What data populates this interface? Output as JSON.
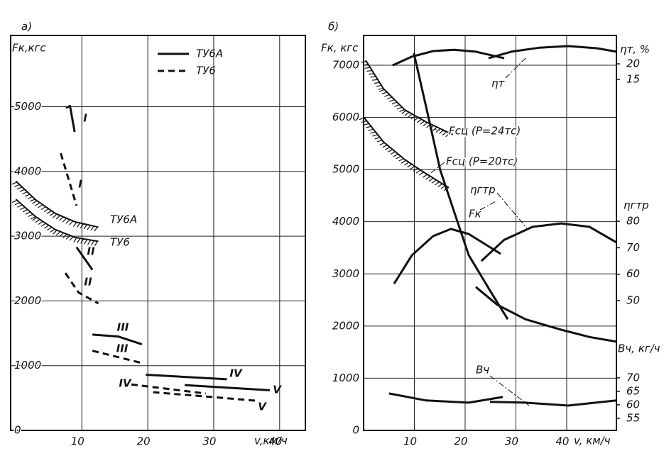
{
  "chart_data": [
    {
      "type": "line",
      "panel_label": "а)",
      "y_label": "Fк,кгс",
      "x_label": "v,км/ч",
      "xlim": [
        -0.8,
        43.9
      ],
      "ylim": [
        0,
        6100
      ],
      "xticks": [
        10,
        20,
        30,
        40
      ],
      "yticks": [
        0,
        1000,
        2000,
        3000,
        4000,
        5000
      ],
      "grid": true,
      "series": [
        {
          "name": "ТУ6А",
          "style": "solid",
          "color": "#111",
          "axis": "y",
          "segments": [
            {
              "label": "I",
              "x": [
                7.6,
                8.2,
                8.9
              ],
              "values": [
                4980,
                5010,
                4610
              ]
            },
            {
              "label": "II",
              "x": [
                9.2,
                11.6
              ],
              "values": [
                2830,
                2480
              ]
            },
            {
              "label": "III",
              "x": [
                11.6,
                15.5,
                19.1
              ],
              "values": [
                1480,
                1450,
                1330
              ]
            },
            {
              "label": "IV",
              "x": [
                19.7,
                32
              ],
              "values": [
                860,
                790
              ]
            },
            {
              "label": "V",
              "x": [
                25.6,
                38.5
              ],
              "values": [
                700,
                620
              ]
            }
          ]
        },
        {
          "name": "ТУ6",
          "style": "dashed",
          "color": "#111",
          "axis": "y",
          "segments": [
            {
              "label": "I",
              "x": [
                6.8,
                9.2
              ],
              "values": [
                4280,
                3470
              ]
            },
            {
              "label": "II",
              "x": [
                7.5,
                9.5,
                12.5
              ],
              "values": [
                2430,
                2130,
                1960
              ]
            },
            {
              "label": "III",
              "x": [
                11.6,
                19.1
              ],
              "values": [
                1230,
                1040
              ]
            },
            {
              "label": "IV",
              "x": [
                17.5,
                28.8
              ],
              "values": [
                710,
                570
              ]
            },
            {
              "label": "V",
              "x": [
                20.8,
                36.3
              ],
              "values": [
                590,
                460
              ]
            }
          ]
        }
      ],
      "limit_curves": [
        {
          "label": "ТУ6А",
          "x": [
            0,
            3,
            6,
            9,
            12.5
          ],
          "values": [
            3850,
            3560,
            3350,
            3220,
            3140
          ]
        },
        {
          "label": "ТУ6",
          "x": [
            0,
            3,
            6,
            9,
            12.5
          ],
          "values": [
            3570,
            3300,
            3100,
            2980,
            2920
          ]
        }
      ]
    },
    {
      "type": "line",
      "panel_label": "б)",
      "y_label": "Fк, кгс",
      "x_label": "v, км/ч",
      "xlim": [
        0,
        49.8
      ],
      "ylim": [
        0,
        7570
      ],
      "xticks": [
        10,
        20,
        30,
        40
      ],
      "yticks": [
        0,
        1000,
        2000,
        3000,
        4000,
        5000,
        6000,
        7000
      ],
      "grid": true,
      "y2_label": "ηгтр",
      "y2lim": [
        1.0,
        150.2
      ],
      "y2ticks": [
        80,
        70,
        60,
        50
      ],
      "y3_label": "ηт, %",
      "y3lim": [
        -97.5,
        29.1
      ],
      "y3ticks": [
        20,
        15
      ],
      "y4_label": "Вч, кг/ч",
      "y4lim": [
        50.5,
        197.1
      ],
      "y4ticks": [
        70,
        65,
        60,
        55
      ],
      "series": [
        {
          "name": "Fк",
          "style": "solid",
          "color": "#111",
          "axis": "y",
          "segments": [
            {
              "x": [
                9.9,
                12.3,
                15.1,
                17.9,
                20.7,
                24.9,
                28.4
              ],
              "values": [
                7230,
                6210,
                4990,
                4170,
                3360,
                2680,
                2130
              ]
            },
            {
              "x": [
                22.1,
                26.3,
                31.9,
                38.9,
                44.5,
                49.8
              ],
              "values": [
                2750,
                2410,
                2130,
                1930,
                1790,
                1700
              ]
            }
          ]
        },
        {
          "name": "ηт",
          "style": "solid",
          "color": "#111",
          "axis": "y3",
          "segments": [
            {
              "x": [
                5.7,
                9.5,
                13.7,
                17.9,
                22.1,
                27.7
              ],
              "values": [
                19.5,
                22.3,
                24.1,
                24.5,
                23.9,
                21.8
              ]
            },
            {
              "x": [
                24.6,
                29.1,
                34.7,
                40.3,
                45.9,
                49.8
              ],
              "values": [
                21.8,
                23.9,
                25.2,
                25.7,
                25.0,
                23.9
              ]
            }
          ]
        },
        {
          "name": "ηгтр",
          "style": "solid",
          "color": "#111",
          "axis": "y2",
          "segments": [
            {
              "x": [
                6.0,
                9.5,
                13.7,
                17.2,
                20.7,
                27.0
              ],
              "values": [
                56.4,
                67.1,
                74.4,
                77.1,
                75.2,
                67.7
              ]
            },
            {
              "x": [
                23.2,
                27.7,
                33.3,
                38.9,
                44.5,
                49.8
              ],
              "values": [
                65.0,
                73.0,
                77.9,
                79.2,
                77.9,
                72.0
              ]
            }
          ]
        },
        {
          "name": "Вч",
          "style": "solid",
          "color": "#111",
          "axis": "y4",
          "segments": [
            {
              "x": [
                5.0,
                12.3,
                20.7,
                27.4
              ],
              "values": [
                64.2,
                61.6,
                60.8,
                62.9
              ]
            },
            {
              "x": [
                24.9,
                31.9,
                40.3,
                49.8
              ],
              "values": [
                61.1,
                60.8,
                59.7,
                61.6
              ]
            }
          ]
        }
      ],
      "limit_curves": [
        {
          "label": "Fсц (P=24тс)",
          "x": [
            0.4,
            3.9,
            8.1,
            12.3,
            17.6
          ],
          "values": [
            7095,
            6552,
            6144,
            5913,
            5668
          ]
        },
        {
          "label": "Fсц (P=20тс)",
          "x": [
            0,
            3.9,
            8.1,
            12.3,
            16.8
          ],
          "values": [
            6008,
            5532,
            5192,
            4921,
            4649
          ]
        }
      ]
    }
  ]
}
